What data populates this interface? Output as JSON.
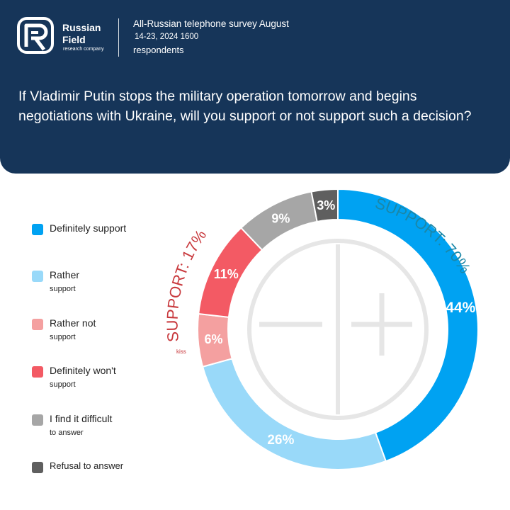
{
  "brand": {
    "name_line1": "Russian",
    "name_line2": "Field",
    "tagline": "research company"
  },
  "survey": {
    "title": "All-Russian telephone survey August",
    "dates": "14-23, 2024 1600",
    "respondents": "respondents"
  },
  "question": "If Vladimir Putin stops the military operation tomorrow and begins negotiations with Ukraine, will you support or not support such a decision?",
  "legend": [
    {
      "line1": "Definitely support",
      "line2": "",
      "color": "#00a2f2"
    },
    {
      "line1": "Rather",
      "line2": "support",
      "color": "#99d9f9"
    },
    {
      "line1": "Rather not",
      "line2": "support",
      "color": "#f4a0a0"
    },
    {
      "line1": "Definitely won't",
      "line2": "support",
      "color": "#f35a64"
    },
    {
      "line1": "I find it difficult",
      "line2": "to answer",
      "color": "#a6a6a6"
    },
    {
      "line1": "Refusal to answer",
      "line2": "",
      "color": "#5f5f5f"
    }
  ],
  "arc_labels": {
    "support": {
      "text": "SUPPORT: 70%",
      "color": "#1a87a8"
    },
    "not_support": {
      "text": "SUPPORT: 17%",
      "color": "#c8383c"
    },
    "small_note": "kiss"
  },
  "chart_data": {
    "type": "pie",
    "variant": "donut",
    "categories": [
      "Definitely support",
      "Rather support",
      "Rather not support",
      "Definitely won't support",
      "I find it difficult to answer",
      "Refusal to answer"
    ],
    "values": [
      44,
      26,
      6,
      11,
      9,
      3
    ],
    "labels": [
      "44%",
      "26%",
      "6%",
      "11%",
      "9%",
      "3%"
    ],
    "colors": [
      "#00a2f2",
      "#99d9f9",
      "#f4a0a0",
      "#f35a64",
      "#a6a6a6",
      "#5f5f5f"
    ],
    "center_symbols": [
      "−",
      "+"
    ],
    "legend_position": "left"
  }
}
